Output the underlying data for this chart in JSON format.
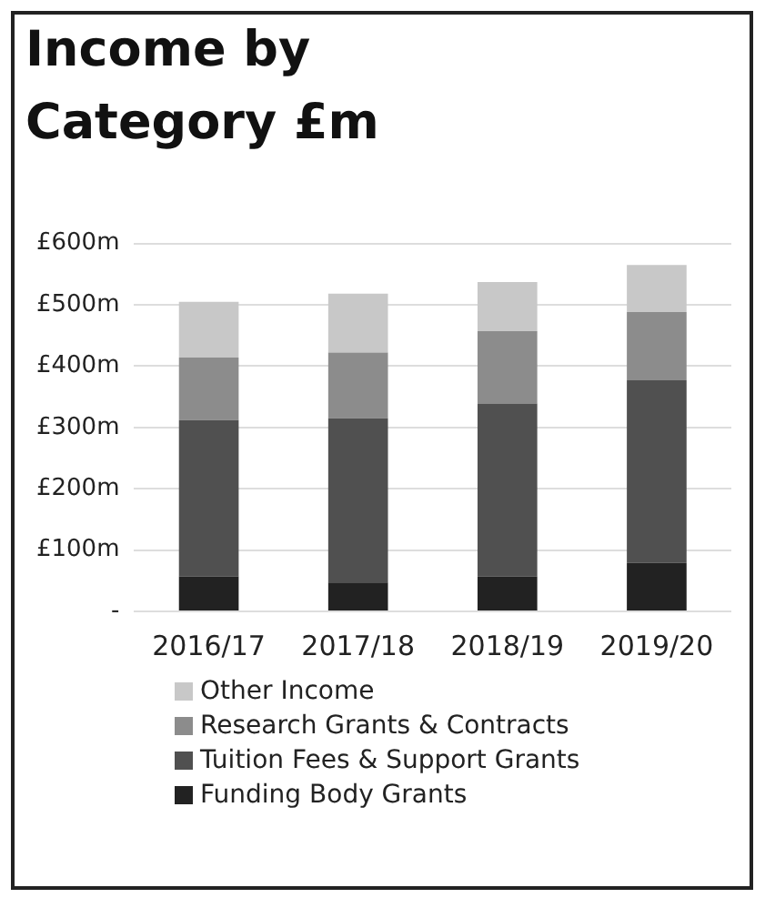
{
  "chart_data": {
    "type": "bar",
    "title": "Income by Category £m",
    "stacked": true,
    "legend": "bottom",
    "grid": "y",
    "categories": [
      "2016/17",
      "2017/18",
      "2018/19",
      "2019/20"
    ],
    "series": [
      {
        "name": "Funding Body Grants",
        "color": "#222222",
        "values": [
          57,
          47,
          57,
          79
        ]
      },
      {
        "name": "Tuition Fees & Support Grants",
        "color": "#505050",
        "values": [
          255,
          268,
          282,
          298
        ]
      },
      {
        "name": "Research Grants & Contracts",
        "color": "#8c8c8c",
        "values": [
          102,
          107,
          118,
          111
        ]
      },
      {
        "name": "Other Income",
        "color": "#c8c8c8",
        "values": [
          91,
          96,
          80,
          77
        ]
      }
    ],
    "ylim": [
      0,
      600
    ],
    "yticks": [
      {
        "value": 0,
        "label": "-"
      },
      {
        "value": 100,
        "label": "£100m"
      },
      {
        "value": 200,
        "label": "£200m"
      },
      {
        "value": 300,
        "label": "£300m"
      },
      {
        "value": 400,
        "label": "£400m"
      },
      {
        "value": 500,
        "label": "£500m"
      },
      {
        "value": 600,
        "label": "£600m"
      }
    ]
  }
}
